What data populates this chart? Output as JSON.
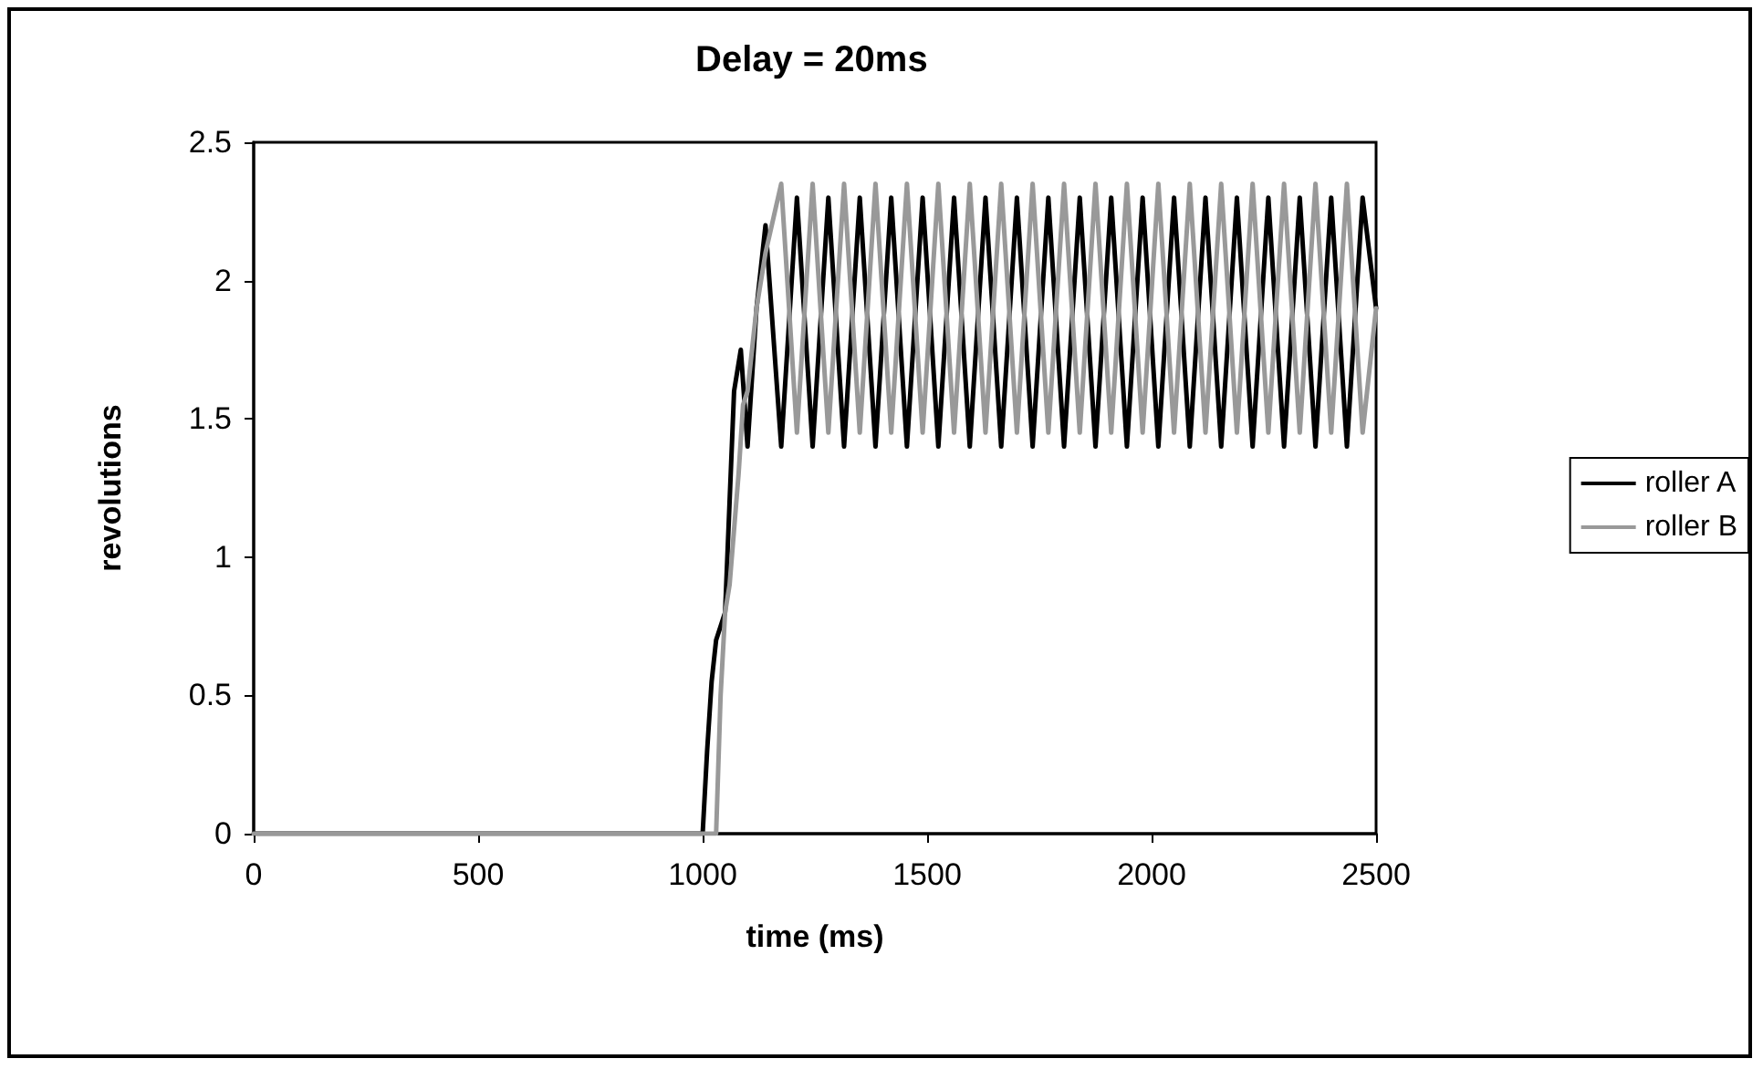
{
  "chart_data": {
    "type": "line",
    "title": "Delay = 20ms",
    "xlabel": "time (ms)",
    "ylabel": "revolutions",
    "xlim": [
      0,
      2500
    ],
    "xticks": [
      0,
      500,
      1000,
      1500,
      2000,
      2500
    ],
    "ylim": [
      0,
      2.5
    ],
    "yticks": [
      0,
      0.5,
      1,
      1.5,
      2,
      2.5
    ],
    "grid": false,
    "legend": "right",
    "marker": "none",
    "line_style": "solid",
    "series": [
      {
        "name": "roller A",
        "color": "#000000",
        "x": [
          0,
          1000,
          1010,
          1020,
          1030,
          1050,
          1060,
          1070,
          1085,
          1100,
          1120,
          1140,
          1175,
          1210,
          1245,
          1280,
          1315,
          1350,
          1385,
          1420,
          1455,
          1490,
          1525,
          1560,
          1595,
          1630,
          1665,
          1700,
          1735,
          1770,
          1805,
          1840,
          1875,
          1910,
          1945,
          1980,
          2015,
          2050,
          2085,
          2120,
          2155,
          2190,
          2225,
          2260,
          2295,
          2330,
          2365,
          2400,
          2435,
          2470,
          2500
        ],
        "values": [
          0,
          0,
          0.3,
          0.55,
          0.7,
          0.8,
          1.2,
          1.6,
          1.75,
          1.4,
          1.9,
          2.2,
          1.4,
          2.3,
          1.4,
          2.3,
          1.4,
          2.3,
          1.4,
          2.3,
          1.4,
          2.3,
          1.4,
          2.3,
          1.4,
          2.3,
          1.4,
          2.3,
          1.4,
          2.3,
          1.4,
          2.3,
          1.4,
          2.3,
          1.4,
          2.3,
          1.4,
          2.3,
          1.4,
          2.3,
          1.4,
          2.3,
          1.4,
          2.3,
          1.4,
          2.3,
          1.4,
          2.3,
          1.4,
          2.3,
          1.9
        ]
      },
      {
        "name": "roller B",
        "color": "#999999",
        "x": [
          0,
          1030,
          1040,
          1050,
          1060,
          1080,
          1090,
          1100,
          1120,
          1140,
          1175,
          1210,
          1245,
          1280,
          1315,
          1350,
          1385,
          1420,
          1455,
          1490,
          1525,
          1560,
          1595,
          1630,
          1665,
          1700,
          1735,
          1770,
          1805,
          1840,
          1875,
          1910,
          1945,
          1980,
          2015,
          2050,
          2085,
          2120,
          2155,
          2190,
          2225,
          2260,
          2295,
          2330,
          2365,
          2400,
          2435,
          2470,
          2500
        ],
        "values": [
          0,
          0,
          0.5,
          0.8,
          0.9,
          1.3,
          1.55,
          1.6,
          1.9,
          2.1,
          2.35,
          1.45,
          2.35,
          1.45,
          2.35,
          1.45,
          2.35,
          1.45,
          2.35,
          1.45,
          2.35,
          1.45,
          2.35,
          1.45,
          2.35,
          1.45,
          2.35,
          1.45,
          2.35,
          1.45,
          2.35,
          1.45,
          2.35,
          1.45,
          2.35,
          1.45,
          2.35,
          1.45,
          2.35,
          1.45,
          2.35,
          1.45,
          2.35,
          1.45,
          2.35,
          1.45,
          2.35,
          1.45,
          1.9
        ]
      }
    ]
  }
}
